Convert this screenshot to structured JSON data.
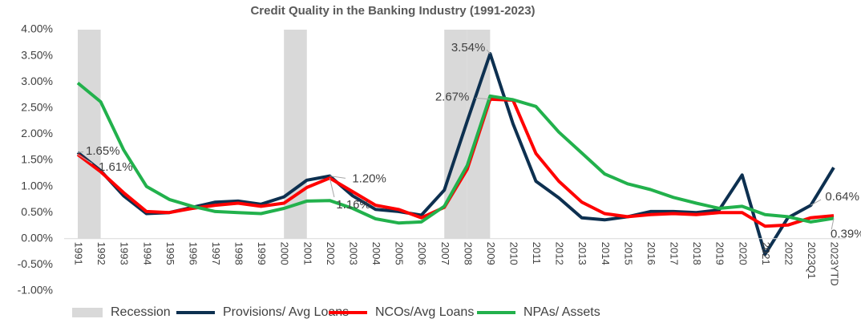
{
  "chart_data": {
    "type": "line",
    "title": "Credit Quality in the Banking Industry (1991-2023)",
    "categories": [
      "1991",
      "1992",
      "1993",
      "1994",
      "1995",
      "1996",
      "1997",
      "1998",
      "1999",
      "2000",
      "2001",
      "2002",
      "2003",
      "2004",
      "2005",
      "2006",
      "2007",
      "2008",
      "2009",
      "2010",
      "2011",
      "2012",
      "2013",
      "2014",
      "2015",
      "2016",
      "2017",
      "2018",
      "2019",
      "2020",
      "2021",
      "2022",
      "2023Q1",
      "2023YTD"
    ],
    "ylim": [
      -1,
      4
    ],
    "yticks": [
      {
        "value": -1,
        "label": "-1.00%"
      },
      {
        "value": -0.5,
        "label": "-0.50%"
      },
      {
        "value": 0,
        "label": "0.00%"
      },
      {
        "value": 0.5,
        "label": "0.50%"
      },
      {
        "value": 1,
        "label": "1.00%"
      },
      {
        "value": 1.5,
        "label": "1.50%"
      },
      {
        "value": 2,
        "label": "2.00%"
      },
      {
        "value": 2.5,
        "label": "2.50%"
      },
      {
        "value": 3,
        "label": "3.00%"
      },
      {
        "value": 3.5,
        "label": "3.50%"
      },
      {
        "value": 4,
        "label": "4.00%"
      }
    ],
    "grid": false,
    "legend": "bottom",
    "series": [
      {
        "name": "Recession",
        "type": "bar",
        "color": "#d9d9d9",
        "values": [
          4,
          null,
          null,
          null,
          null,
          null,
          null,
          null,
          null,
          4,
          null,
          null,
          null,
          null,
          null,
          null,
          4,
          4,
          null,
          null,
          null,
          null,
          null,
          null,
          null,
          null,
          null,
          null,
          null,
          null,
          null,
          null,
          null,
          null
        ]
      },
      {
        "name": "Provisions/ Avg Loans",
        "color": "#0d3050",
        "values": [
          1.65,
          1.3,
          0.82,
          0.48,
          0.5,
          0.6,
          0.7,
          0.72,
          0.66,
          0.8,
          1.12,
          1.2,
          0.82,
          0.56,
          0.52,
          0.45,
          0.93,
          2.25,
          3.54,
          2.2,
          1.1,
          0.78,
          0.4,
          0.36,
          0.42,
          0.52,
          0.52,
          0.5,
          0.55,
          1.22,
          -0.3,
          0.4,
          0.64,
          1.36
        ],
        "value_labels": [
          "1.65%",
          null,
          null,
          null,
          null,
          null,
          null,
          null,
          null,
          null,
          null,
          "1.20%",
          null,
          null,
          null,
          null,
          null,
          null,
          "3.54%",
          null,
          null,
          null,
          null,
          null,
          null,
          null,
          null,
          null,
          null,
          null,
          null,
          null,
          "0.64%",
          null
        ]
      },
      {
        "name": "NCOs/Avg Loans",
        "color": "#ff0000",
        "values": [
          1.61,
          1.28,
          0.88,
          0.52,
          0.5,
          0.58,
          0.64,
          0.68,
          0.62,
          0.68,
          0.98,
          1.16,
          0.9,
          0.64,
          0.56,
          0.4,
          0.6,
          1.33,
          2.67,
          2.65,
          1.63,
          1.1,
          0.7,
          0.48,
          0.42,
          0.46,
          0.48,
          0.46,
          0.5,
          0.5,
          0.24,
          0.26,
          0.4,
          0.44
        ],
        "value_labels": [
          "1.61%",
          null,
          null,
          null,
          null,
          null,
          null,
          null,
          null,
          null,
          null,
          "1.16%",
          null,
          null,
          null,
          null,
          null,
          null,
          "2.67%",
          null,
          null,
          null,
          null,
          null,
          null,
          null,
          null,
          null,
          null,
          null,
          null,
          null,
          null,
          null
        ]
      },
      {
        "name": "NPAs/ Assets",
        "color": "#22b14c",
        "values": [
          2.98,
          2.62,
          1.7,
          1.0,
          0.75,
          0.62,
          0.52,
          0.5,
          0.48,
          0.58,
          0.72,
          0.73,
          0.58,
          0.38,
          0.3,
          0.32,
          0.62,
          1.4,
          2.73,
          2.66,
          2.53,
          2.04,
          1.64,
          1.24,
          1.05,
          0.94,
          0.79,
          0.68,
          0.58,
          0.62,
          0.46,
          0.42,
          0.32,
          0.39
        ],
        "value_labels": [
          null,
          null,
          null,
          null,
          null,
          null,
          null,
          null,
          null,
          null,
          null,
          null,
          null,
          null,
          null,
          null,
          null,
          null,
          null,
          null,
          null,
          null,
          null,
          null,
          null,
          null,
          null,
          null,
          null,
          null,
          null,
          null,
          null,
          "0.39%"
        ]
      }
    ]
  }
}
